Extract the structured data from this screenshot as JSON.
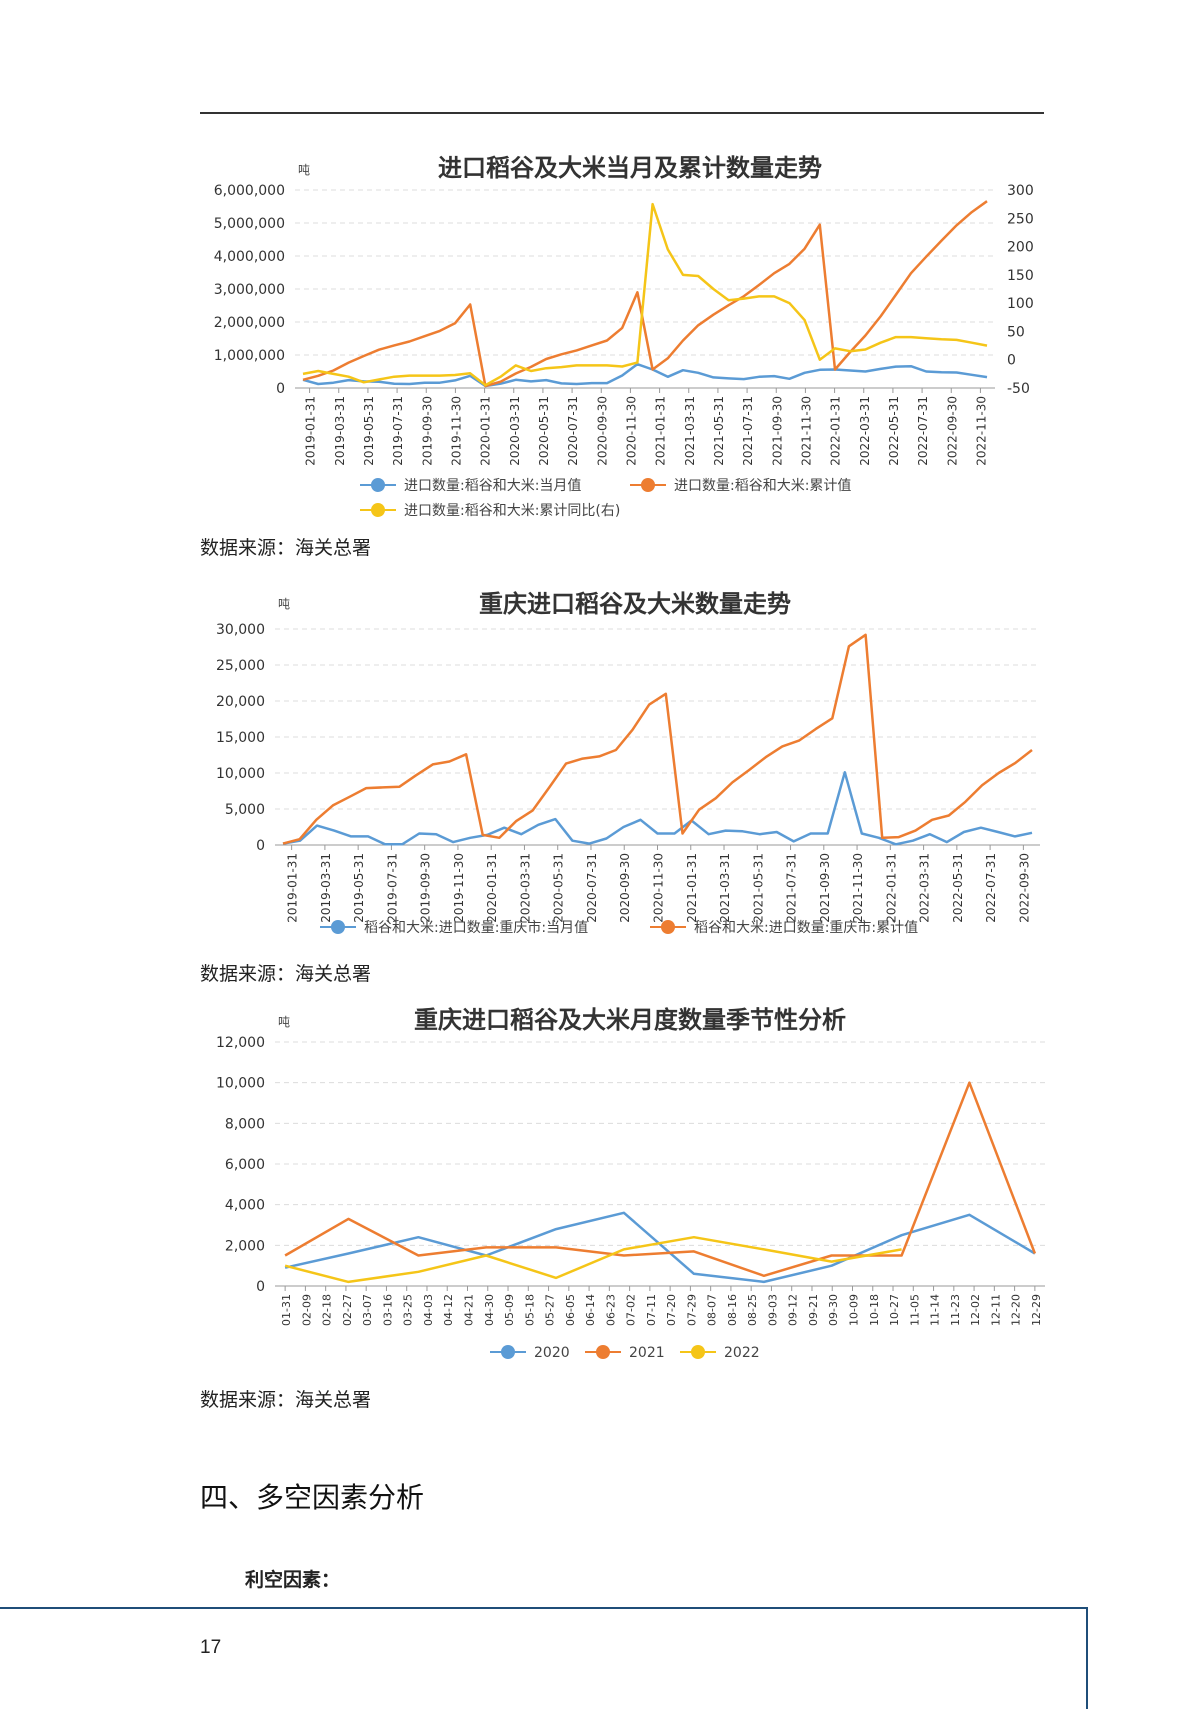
{
  "sources": {
    "source1": "数据来源：海关总署",
    "source2": "数据来源：海关总署",
    "source3": "数据来源：海关总署"
  },
  "section": {
    "title": "四、多空因素分析",
    "subtitle": "利空因素："
  },
  "footer": {
    "page_number": "17"
  },
  "chart_data": [
    {
      "type": "line",
      "title": "进口稻谷及大米当月及累计数量走势",
      "ylabel": "吨",
      "ylim": [
        0,
        6000000
      ],
      "y_ticks": [
        "6,000,000",
        "5,000,000",
        "4,000,000",
        "3,000,000",
        "2,000,000",
        "1,000,000",
        "0"
      ],
      "y2lim": [
        -50,
        300
      ],
      "y2_ticks": [
        "300",
        "250",
        "200",
        "150",
        "100",
        "50",
        "0",
        "-50"
      ],
      "x_labels": [
        "2019-01-31",
        "2019-03-31",
        "2019-05-31",
        "2019-07-31",
        "2019-09-30",
        "2019-11-30",
        "2020-01-31",
        "2020-03-31",
        "2020-05-31",
        "2020-07-31",
        "2020-09-30",
        "2020-11-30",
        "2021-01-31",
        "2021-03-31",
        "2021-05-31",
        "2021-07-31",
        "2021-09-30",
        "2021-11-30",
        "2022-01-31",
        "2022-03-31",
        "2022-05-31",
        "2022-07-31",
        "2022-09-30",
        "2022-11-30"
      ],
      "series": [
        {
          "name": "进口数量:稻谷和大米:当月值",
          "color": "#5b9bd5",
          "axis": "left",
          "values": [
            250000,
            120000,
            160000,
            240000,
            200000,
            190000,
            130000,
            120000,
            160000,
            160000,
            230000,
            370000,
            60000,
            130000,
            250000,
            200000,
            240000,
            140000,
            120000,
            150000,
            150000,
            380000,
            720000,
            560000,
            340000,
            540000,
            460000,
            320000,
            290000,
            270000,
            340000,
            360000,
            280000,
            460000,
            550000,
            560000,
            530000,
            500000,
            580000,
            650000,
            660000,
            500000,
            480000,
            470000,
            400000,
            330000
          ]
        },
        {
          "name": "进口数量:稻谷和大米:累计值",
          "color": "#ed7d31",
          "axis": "left",
          "values": [
            250000,
            370000,
            530000,
            770000,
            970000,
            1160000,
            1290000,
            1410000,
            1570000,
            1730000,
            1960000,
            2530000,
            60000,
            190000,
            440000,
            640000,
            880000,
            1020000,
            1140000,
            1290000,
            1440000,
            1820000,
            2900000,
            560000,
            900000,
            1440000,
            1900000,
            2220000,
            2510000,
            2780000,
            3120000,
            3480000,
            3760000,
            4220000,
            4950000,
            560000,
            1090000,
            1590000,
            2170000,
            2820000,
            3480000,
            3980000,
            4460000,
            4930000,
            5330000,
            5660000
          ]
        },
        {
          "name": "进口数量:稻谷和大米:累计同比(右)",
          "color": "#f5c518",
          "axis": "right",
          "values": [
            -25,
            -20,
            -25,
            -30,
            -40,
            -35,
            -30,
            -28,
            -28,
            -28,
            -27,
            -24,
            -45,
            -30,
            -10,
            -20,
            -15,
            -13,
            -10,
            -10,
            -10,
            -12,
            -5,
            275,
            195,
            150,
            148,
            125,
            105,
            108,
            112,
            112,
            100,
            70,
            0,
            20,
            15,
            18,
            30,
            40,
            40,
            38,
            36,
            35,
            30,
            25
          ]
        }
      ]
    },
    {
      "type": "line",
      "title": "重庆进口稻谷及大米数量走势",
      "ylabel": "吨",
      "ylim": [
        0,
        30000
      ],
      "y_ticks": [
        "30,000",
        "25,000",
        "20,000",
        "15,000",
        "10,000",
        "5,000",
        "0"
      ],
      "x_labels": [
        "2019-01-31",
        "2019-03-31",
        "2019-05-31",
        "2019-07-31",
        "2019-09-30",
        "2019-11-30",
        "2020-01-31",
        "2020-03-31",
        "2020-05-31",
        "2020-07-31",
        "2020-09-30",
        "2020-11-30",
        "2021-01-31",
        "2021-03-31",
        "2021-05-31",
        "2021-07-31",
        "2021-09-30",
        "2021-11-30",
        "2022-01-31",
        "2022-03-31",
        "2022-05-31",
        "2022-07-31",
        "2022-09-30"
      ],
      "series": [
        {
          "name": "稻谷和大米:进口数量:重庆市:当月值",
          "color": "#5b9bd5",
          "values": [
            200,
            600,
            2700,
            2000,
            1200,
            1200,
            100,
            100,
            1600,
            1500,
            400,
            1000,
            1400,
            2400,
            1500,
            2800,
            3600,
            600,
            200,
            900,
            2500,
            3500,
            1600,
            1600,
            3400,
            1500,
            2000,
            1900,
            1500,
            1800,
            500,
            1600,
            1600,
            10100,
            1600,
            1000,
            100,
            600,
            1500,
            400,
            1800,
            2400,
            1800,
            1200,
            1700
          ]
        },
        {
          "name": "稻谷和大米:进口数量:重庆市:累计值",
          "color": "#ed7d31",
          "values": [
            200,
            800,
            3500,
            5500,
            6700,
            7900,
            8000,
            8100,
            9700,
            11200,
            11600,
            12600,
            1400,
            1000,
            3300,
            4800,
            8000,
            11300,
            12000,
            12300,
            13200,
            16000,
            19500,
            21000,
            1600,
            4900,
            6500,
            8700,
            10400,
            12200,
            13700,
            14500,
            16100,
            17600,
            27600,
            29200,
            1000,
            1100,
            2000,
            3500,
            4100,
            6000,
            8300,
            10000,
            11400,
            13200
          ]
        }
      ]
    },
    {
      "type": "line",
      "title": "重庆进口稻谷及大米月度数量季节性分析",
      "ylabel": "吨",
      "ylim": [
        0,
        12000
      ],
      "y_ticks": [
        "12,000",
        "10,000",
        "8,000",
        "6,000",
        "4,000",
        "2,000",
        "0"
      ],
      "x_labels": [
        "01-31",
        "02-09",
        "02-18",
        "02-27",
        "03-07",
        "03-16",
        "03-25",
        "04-03",
        "04-12",
        "04-21",
        "04-30",
        "05-09",
        "05-18",
        "05-27",
        "06-05",
        "06-14",
        "06-23",
        "07-02",
        "07-11",
        "07-20",
        "07-29",
        "08-07",
        "08-16",
        "08-25",
        "09-03",
        "09-12",
        "09-21",
        "09-30",
        "10-09",
        "10-18",
        "10-27",
        "11-05",
        "11-14",
        "11-23",
        "12-02",
        "12-11",
        "12-20",
        "12-29"
      ],
      "x_days": [
        31,
        59,
        90,
        120,
        151,
        181,
        212,
        243,
        273,
        304,
        334,
        363
      ],
      "series": [
        {
          "name": "2020",
          "color": "#5b9bd5",
          "values": [
            900,
            1600,
            2400,
            1500,
            2800,
            3600,
            600,
            200,
            1000,
            2500,
            3500,
            1600
          ]
        },
        {
          "name": "2021",
          "color": "#ed7d31",
          "values": [
            1500,
            3300,
            1500,
            1900,
            1900,
            1500,
            1700,
            500,
            1500,
            1500,
            10000,
            1600
          ]
        },
        {
          "name": "2022",
          "color": "#f5c518",
          "values": [
            1000,
            200,
            700,
            1500,
            400,
            1800,
            2400,
            1800,
            1200,
            1800
          ]
        }
      ]
    }
  ]
}
